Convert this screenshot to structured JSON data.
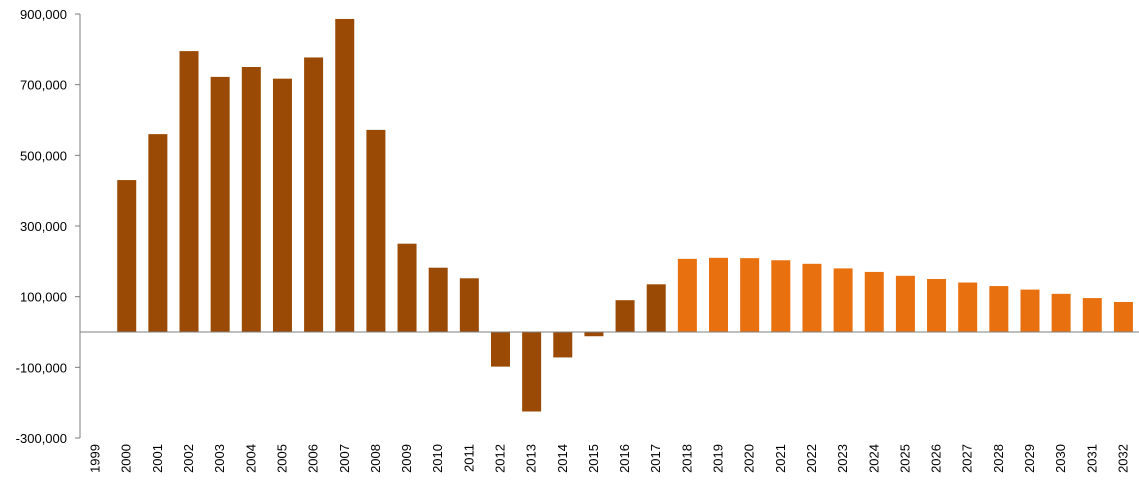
{
  "chart_data": {
    "type": "bar",
    "title": "",
    "xlabel": "",
    "ylabel": "",
    "ylim": [
      -300000,
      900000
    ],
    "yticks": [
      -300000,
      -100000,
      100000,
      300000,
      500000,
      700000,
      900000
    ],
    "ytick_labels": [
      "-300,000",
      "-100,000",
      "100,000",
      "300,000",
      "500,000",
      "700,000",
      "900,000"
    ],
    "grid": false,
    "legend": "none",
    "categories": [
      "1999",
      "2000",
      "2001",
      "2002",
      "2003",
      "2004",
      "2005",
      "2006",
      "2007",
      "2008",
      "2009",
      "2010",
      "2011",
      "2012",
      "2013",
      "2014",
      "2015",
      "2016",
      "2017",
      "2018",
      "2019",
      "2020",
      "2021",
      "2022",
      "2023",
      "2024",
      "2025",
      "2026",
      "2027",
      "2028",
      "2029",
      "2030",
      "2031",
      "2032"
    ],
    "values": [
      null,
      430000,
      560000,
      795000,
      722000,
      750000,
      717000,
      777000,
      886000,
      572000,
      250000,
      182000,
      152000,
      -98000,
      -225000,
      -72000,
      -12000,
      90000,
      135000,
      207000,
      210000,
      209000,
      203000,
      193000,
      180000,
      170000,
      159000,
      150000,
      140000,
      130000,
      120000,
      108000,
      96000,
      85000
    ],
    "series_kind": [
      "none",
      "historical",
      "historical",
      "historical",
      "historical",
      "historical",
      "historical",
      "historical",
      "historical",
      "historical",
      "historical",
      "historical",
      "historical",
      "historical",
      "historical",
      "historical",
      "historical",
      "historical",
      "historical",
      "forecast",
      "forecast",
      "forecast",
      "forecast",
      "forecast",
      "forecast",
      "forecast",
      "forecast",
      "forecast",
      "forecast",
      "forecast",
      "forecast",
      "forecast",
      "forecast",
      "forecast"
    ],
    "colors": {
      "historical": "#9a4a04",
      "forecast": "#e8700e",
      "axis": "#7f7f7f"
    }
  }
}
